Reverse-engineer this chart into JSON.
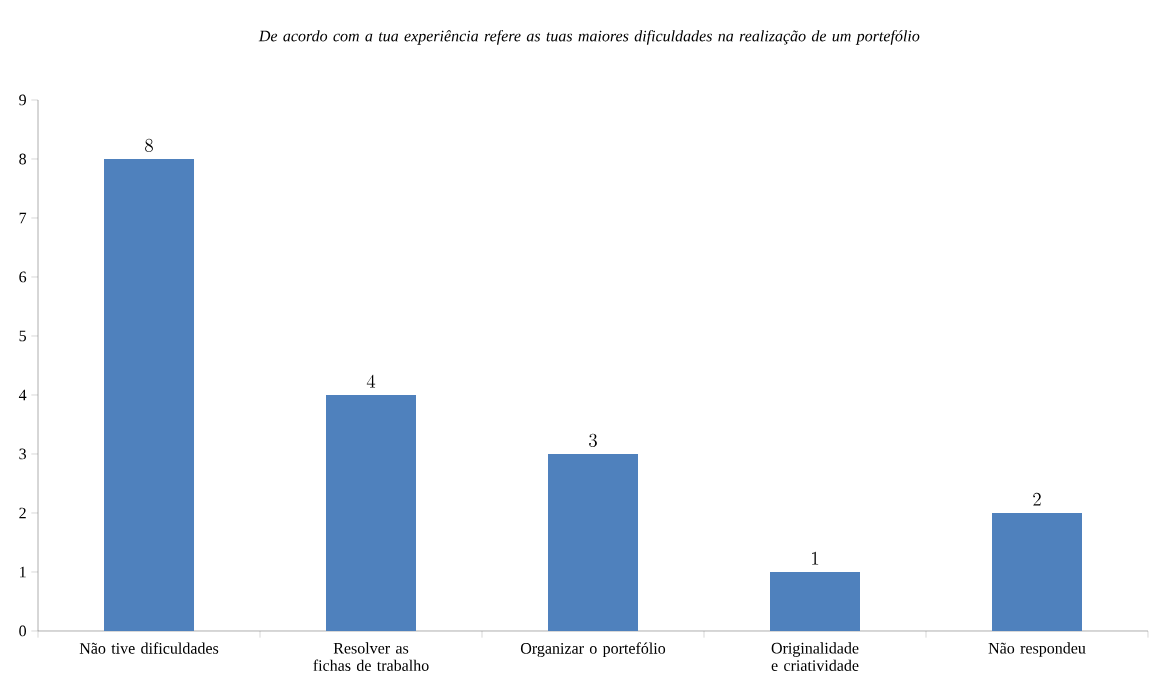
{
  "chart_data": {
    "type": "bar",
    "title": "De acordo com a tua experiência refere as tuas maiores dificuldades na realização de um portefólio",
    "categories": [
      "Não tive dificuldades",
      "Resolver as fichas de trabalho",
      "Organizar o portefólio",
      "Originalidade e criatividade",
      "Não respondeu"
    ],
    "values": [
      8,
      4,
      3,
      1,
      2
    ],
    "color": "#4f81bd",
    "ylim": [
      0,
      9
    ],
    "yticks": [
      0,
      1,
      2,
      3,
      4,
      5,
      6,
      7,
      8,
      9
    ],
    "grid": false,
    "data_labels": true
  }
}
